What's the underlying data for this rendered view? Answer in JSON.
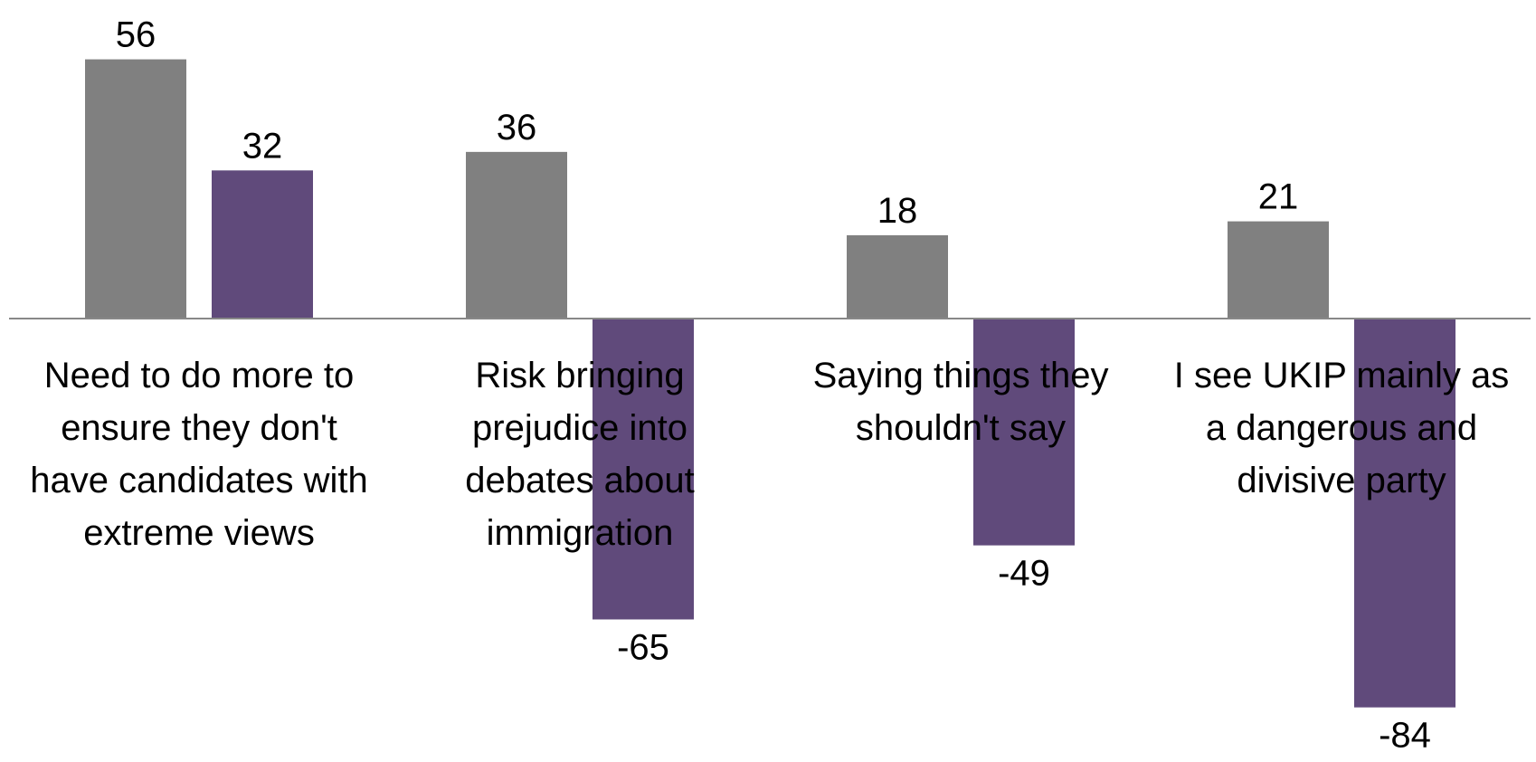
{
  "chart_data": {
    "type": "bar",
    "title": "",
    "xlabel": "",
    "ylabel": "",
    "grid": false,
    "legend": "none",
    "categories": [
      [
        "Need to do more to",
        "ensure they don't",
        "have candidates with",
        "extreme views"
      ],
      [
        "Risk bringing",
        "prejudice into",
        "debates about",
        "immigration"
      ],
      [
        "Saying things they",
        "shouldn't say"
      ],
      [
        "I see UKIP mainly as",
        "a dangerous and",
        "divisive party"
      ]
    ],
    "series": [
      {
        "color": "#808080",
        "values": [
          56,
          36,
          18,
          21
        ]
      },
      {
        "color": "#604a7b",
        "values": [
          32,
          -65,
          -49,
          -84
        ]
      }
    ],
    "ylim": [
      -100,
      70
    ],
    "value_labels": [
      [
        "56",
        "36",
        "18",
        "21"
      ],
      [
        "32",
        "-65",
        "-49",
        "-84"
      ]
    ]
  }
}
